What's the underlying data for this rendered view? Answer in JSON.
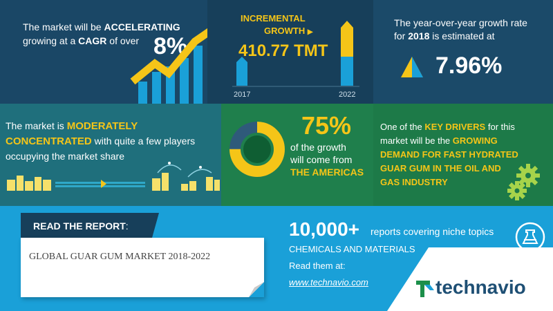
{
  "p1": {
    "line1_pre": "The market will be ",
    "line1_em": "ACCELERATING",
    "line2_pre": "growing at a ",
    "line2_em": "CAGR",
    "line2_post": " of over",
    "value": "8%"
  },
  "p2": {
    "label1": "INCREMENTAL",
    "label2": "GROWTH",
    "value": "410.77 TMT",
    "year_start": "2017",
    "year_end": "2022"
  },
  "p3": {
    "line1": "The year-over-year growth rate",
    "line2_pre": "for ",
    "line2_em": "2018",
    "line2_post": " is estimated at",
    "value": "7.96%"
  },
  "p4": {
    "line1_pre": "The market is ",
    "line1_em": "MODERATELY",
    "line2_em": "CONCENTRATED",
    "line2_post": " with quite a few players",
    "line3": "occupying the market share"
  },
  "p5": {
    "value": "75%",
    "line1": "of the growth",
    "line2": "will come from",
    "line3": "THE AMERICAS"
  },
  "p6": {
    "line1_pre": "One of the ",
    "line1_em": "KEY DRIVERS",
    "line1_post": " for this",
    "line2_pre": "market will be the ",
    "line2_em": "GROWING",
    "line3": "DEMAND FOR FAST HYDRATED",
    "line4": "GUAR GUM IN THE OIL AND",
    "line5": "GAS INDUSTRY"
  },
  "p7": {
    "read_label": "READ THE REPORT",
    "read_colon": ":",
    "report_title": "GLOBAL GUAR GUM MARKET 2018-2022",
    "count": "10,000+",
    "count_desc": "reports covering niche topics",
    "category": "CHEMICALS AND MATERIALS",
    "read_them": "Read them at:",
    "url": "www.technavio.com",
    "brand": "technavio"
  },
  "colors": {
    "yellow": "#f5c518",
    "blue": "#1aa0d8",
    "teal": "#1f6f7c",
    "green": "#1f7f4c",
    "navy": "#173f5a"
  }
}
